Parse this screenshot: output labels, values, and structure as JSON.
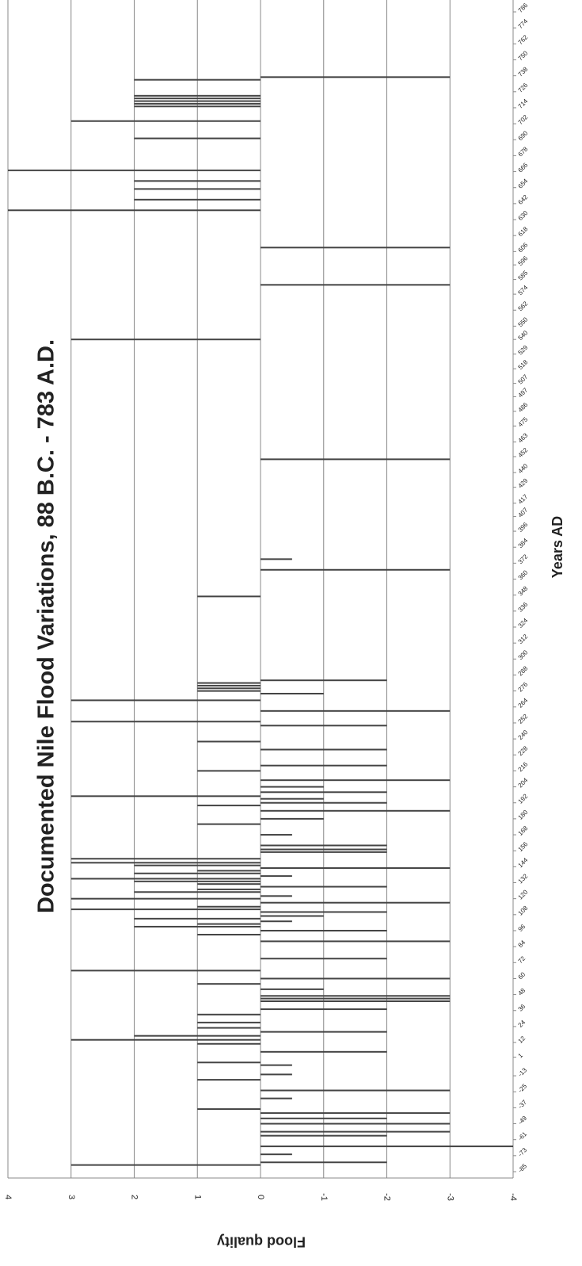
{
  "chart_data": {
    "type": "bar",
    "orientation": "horizontal",
    "title": "Documented Nile Flood Variations, 88 B.C. - 783 A.D.",
    "x_label": "Years AD",
    "y_label": "Flood quality",
    "xlim": [
      -85,
      786
    ],
    "xticks": [
      786,
      774,
      762,
      750,
      738,
      726,
      714,
      702,
      690,
      678,
      666,
      654,
      642,
      630,
      618,
      606,
      596,
      585,
      574,
      562,
      550,
      540,
      529,
      518,
      507,
      497,
      486,
      475,
      463,
      452,
      440,
      429,
      417,
      407,
      396,
      384,
      372,
      360,
      348,
      336,
      324,
      312,
      300,
      288,
      276,
      264,
      252,
      240,
      228,
      216,
      204,
      192,
      180,
      168,
      156,
      144,
      132,
      120,
      108,
      96,
      84,
      72,
      60,
      48,
      36,
      24,
      12,
      1,
      -13,
      -25,
      -37,
      -49,
      -61,
      -73,
      -85
    ],
    "ylim": [
      4,
      -4
    ],
    "yticks": [
      4,
      3,
      2,
      1,
      0,
      -1,
      -2,
      -3,
      -4
    ],
    "grid": true,
    "color": "#444444",
    "x": [
      737,
      735,
      723,
      721,
      719,
      717,
      715,
      704,
      691,
      667,
      659,
      653,
      645,
      637,
      609,
      581,
      540,
      450,
      375,
      367,
      347,
      284,
      282,
      280,
      278,
      276,
      274,
      269,
      261,
      253,
      250,
      238,
      232,
      220,
      216,
      209,
      204,
      200,
      197,
      195,
      192,
      190,
      186,
      180,
      176,
      168,
      160,
      157,
      155,
      150,
      147,
      145,
      143,
      141,
      139,
      137,
      135,
      133,
      131,
      129,
      127,
      125,
      122,
      120,
      117,
      114,
      112,
      110,
      107,
      105,
      103,
      101,
      99,
      96,
      93,
      88,
      75,
      66,
      60,
      56,
      52,
      47,
      45,
      43,
      37,
      33,
      27,
      23,
      20,
      17,
      14,
      11,
      5,
      -3,
      -5,
      -12,
      -16,
      -24,
      -30,
      -38,
      -41,
      -45,
      -49,
      -55,
      -58,
      -66,
      -72,
      -78,
      -80
    ],
    "values": [
      -3,
      2,
      2,
      2,
      2,
      2,
      2,
      3,
      2,
      4,
      2,
      2,
      2,
      4,
      -3,
      -3,
      3,
      -3,
      -0.5,
      -3,
      1,
      -2,
      1,
      1,
      1,
      1,
      -1,
      3,
      -3,
      3,
      -2,
      1,
      -2,
      -2,
      1,
      -3,
      -1,
      -2,
      3,
      -1,
      -2,
      1,
      -3,
      -1,
      1,
      -0.5,
      -2,
      -2,
      -2,
      3,
      3,
      2,
      -3,
      1,
      2,
      -0.5,
      3,
      2,
      1,
      -2,
      1,
      2,
      -0.5,
      3,
      -3,
      1,
      3,
      -2,
      -1,
      2,
      -0.5,
      1,
      2,
      -2,
      1,
      -3,
      -2,
      3,
      -3,
      1,
      -1,
      -3,
      -3,
      -3,
      -2,
      1,
      1,
      1,
      -2,
      2,
      3,
      1,
      -2,
      1,
      -0.5,
      -0.5,
      1,
      -3,
      -0.5,
      1,
      -3,
      -2,
      -3,
      -3,
      -2,
      -4,
      -0.5,
      -2,
      3
    ]
  }
}
